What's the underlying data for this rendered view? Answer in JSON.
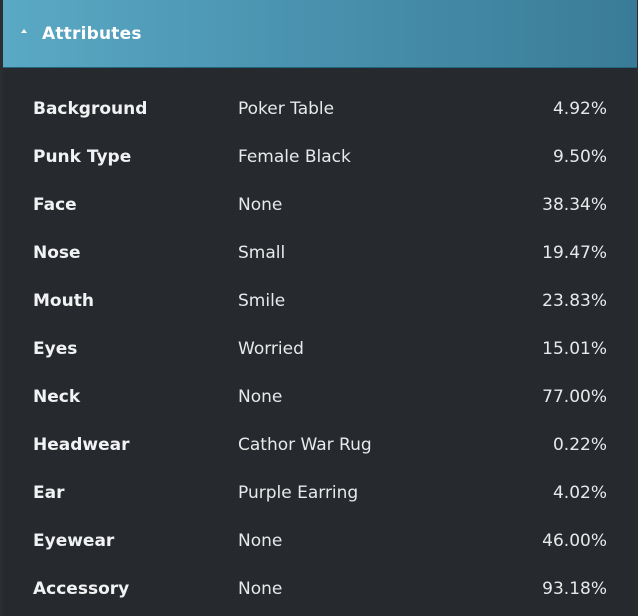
{
  "header": {
    "title": "Attributes",
    "icon": "caret-up-icon"
  },
  "attributes": [
    {
      "name": "Background",
      "value": "Poker Table",
      "percent": "4.92%"
    },
    {
      "name": "Punk Type",
      "value": "Female Black",
      "percent": "9.50%"
    },
    {
      "name": "Face",
      "value": "None",
      "percent": "38.34%"
    },
    {
      "name": "Nose",
      "value": "Small",
      "percent": "19.47%"
    },
    {
      "name": "Mouth",
      "value": "Smile",
      "percent": "23.83%"
    },
    {
      "name": "Eyes",
      "value": "Worried",
      "percent": "15.01%"
    },
    {
      "name": "Neck",
      "value": "None",
      "percent": "77.00%"
    },
    {
      "name": "Headwear",
      "value": "Cathor War Rug",
      "percent": "0.22%"
    },
    {
      "name": "Ear",
      "value": "Purple Earring",
      "percent": "4.02%"
    },
    {
      "name": "Eyewear",
      "value": "None",
      "percent": "46.00%"
    },
    {
      "name": "Accessory",
      "value": "None",
      "percent": "93.18%"
    }
  ],
  "colors": {
    "header_start": "#5aa9c4",
    "header_end": "#3a7c98",
    "panel_bg": "#26292d",
    "text": "#f1f2f3"
  }
}
